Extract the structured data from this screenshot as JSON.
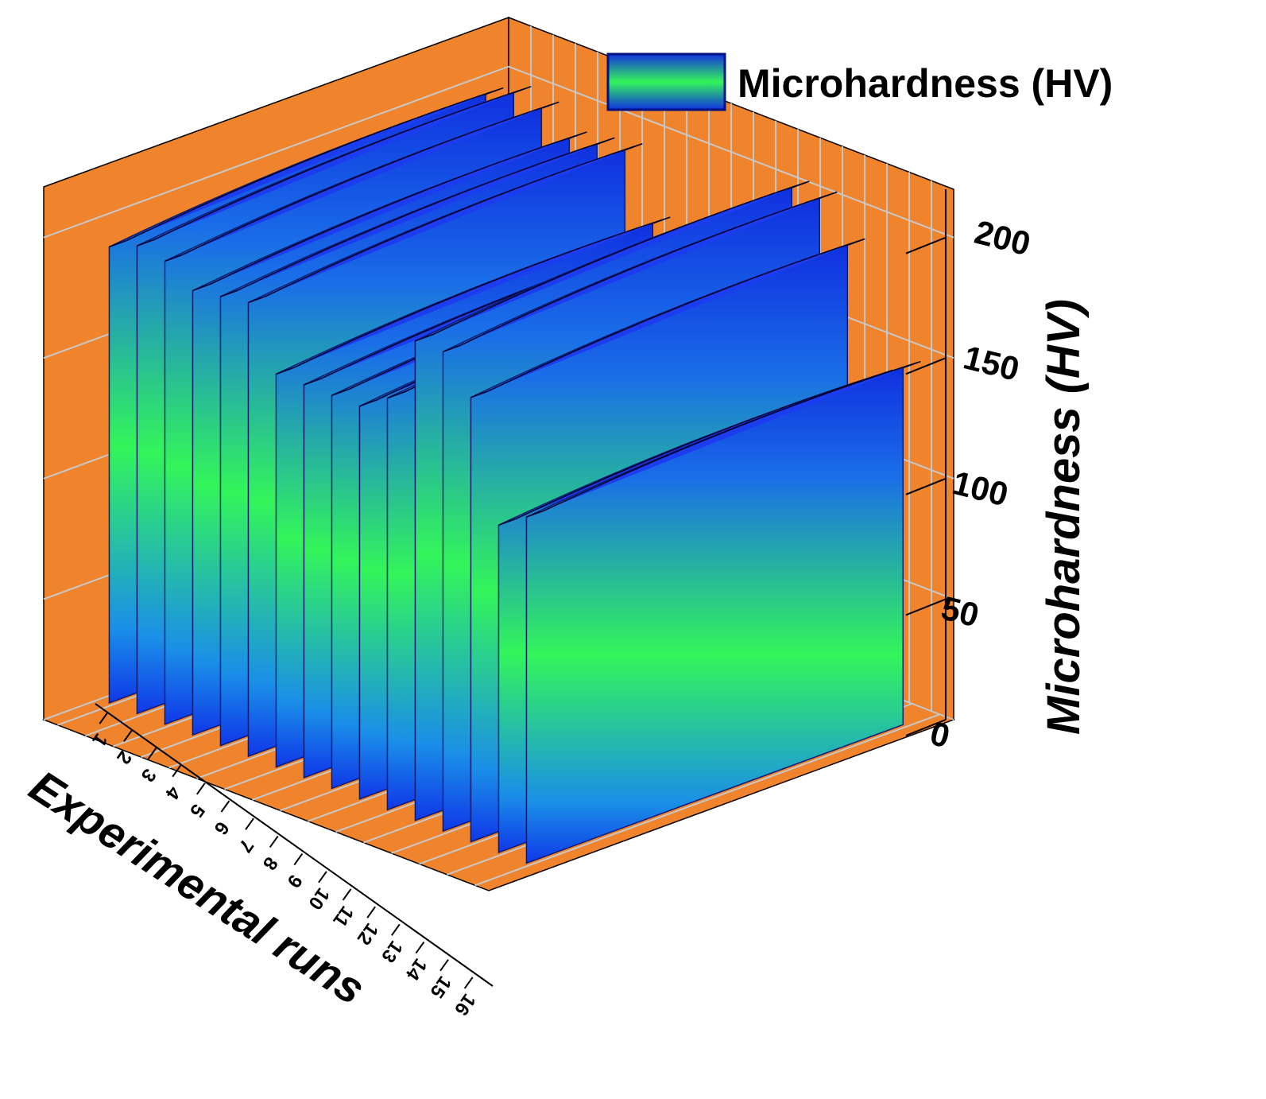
{
  "chart_data": {
    "type": "bar",
    "style": "3d-wall",
    "title": "",
    "xlabel": "Experimental runs",
    "ylabel": "Microhardness (HV)",
    "categories": [
      "1",
      "2",
      "3",
      "4",
      "5",
      "6",
      "7",
      "8",
      "9",
      "10",
      "11",
      "12",
      "13",
      "14",
      "15",
      "16"
    ],
    "series": [
      {
        "name": "Microhardness (HV)",
        "values": [
          195,
          200,
          198,
          190,
          192,
          194,
          168,
          168,
          168,
          168,
          176,
          205,
          205,
          190,
          140,
          148
        ]
      }
    ],
    "ylim": [
      0,
      220
    ],
    "yticks": [
      "0",
      "50",
      "100",
      "150",
      "200"
    ],
    "grid": true,
    "legend": "top-right",
    "colors": {
      "wall": "#f0842c",
      "grid": "#c8c8c8",
      "frame": "#000000",
      "gradient_low": "#1040e8",
      "gradient_mid": "#33f55a",
      "gradient_high": "#1030e0"
    }
  }
}
